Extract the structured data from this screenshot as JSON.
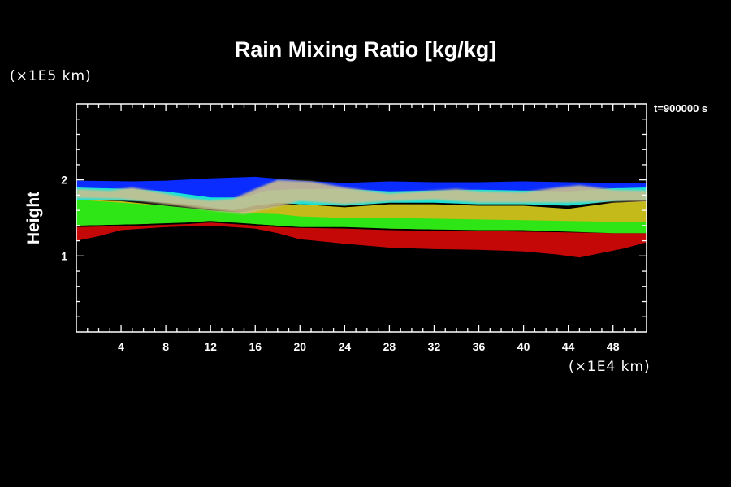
{
  "chart_data": {
    "type": "heatmap",
    "title": "Rain Mixing Ratio [kg/kg]",
    "ylabel": "Height",
    "xlabel": "",
    "x_unit": "(×1E4 km)",
    "y_unit": "(×1E5 km)",
    "time_label": "t=900000 s",
    "x_ticks": [
      4,
      8,
      12,
      16,
      20,
      24,
      28,
      32,
      36,
      40,
      44,
      48
    ],
    "y_ticks": [
      1,
      2
    ],
    "xlim": [
      0,
      51
    ],
    "ylim": [
      0,
      3
    ],
    "grid": false,
    "bands": [
      {
        "name": "blue",
        "top": [
          [
            0,
            1.99
          ],
          [
            5,
            1.98
          ],
          [
            8,
            1.99
          ],
          [
            12,
            2.02
          ],
          [
            16,
            2.04
          ],
          [
            20,
            1.99
          ],
          [
            24,
            1.96
          ],
          [
            28,
            1.98
          ],
          [
            32,
            1.97
          ],
          [
            36,
            1.97
          ],
          [
            40,
            1.98
          ],
          [
            44,
            1.97
          ],
          [
            48,
            1.96
          ],
          [
            51,
            1.96
          ]
        ],
        "bottom": [
          [
            0,
            1.89
          ],
          [
            4,
            1.87
          ],
          [
            6,
            1.87
          ],
          [
            8,
            1.84
          ],
          [
            10,
            1.78
          ],
          [
            12,
            1.72
          ],
          [
            14,
            1.73
          ],
          [
            16,
            1.78
          ],
          [
            18,
            1.84
          ],
          [
            20,
            1.85
          ],
          [
            24,
            1.86
          ],
          [
            28,
            1.84
          ],
          [
            32,
            1.86
          ],
          [
            36,
            1.86
          ],
          [
            40,
            1.86
          ],
          [
            44,
            1.85
          ],
          [
            48,
            1.88
          ],
          [
            51,
            1.89
          ]
        ]
      },
      {
        "name": "cyan",
        "top": [
          [
            0,
            1.9
          ],
          [
            5,
            1.88
          ],
          [
            8,
            1.85
          ],
          [
            12,
            1.77
          ],
          [
            15,
            1.77
          ],
          [
            17,
            1.86
          ],
          [
            20,
            1.88
          ],
          [
            24,
            1.88
          ],
          [
            28,
            1.85
          ],
          [
            32,
            1.86
          ],
          [
            36,
            1.87
          ],
          [
            40,
            1.86
          ],
          [
            44,
            1.85
          ],
          [
            48,
            1.89
          ],
          [
            51,
            1.9
          ]
        ],
        "bottom": [
          [
            0,
            1.74
          ],
          [
            6,
            1.72
          ],
          [
            10,
            1.68
          ],
          [
            12,
            1.64
          ],
          [
            14,
            1.6
          ],
          [
            16,
            1.66
          ],
          [
            18,
            1.7
          ],
          [
            20,
            1.68
          ],
          [
            24,
            1.66
          ],
          [
            28,
            1.7
          ],
          [
            32,
            1.7
          ],
          [
            36,
            1.68
          ],
          [
            40,
            1.68
          ],
          [
            44,
            1.66
          ],
          [
            48,
            1.72
          ],
          [
            51,
            1.74
          ]
        ]
      },
      {
        "name": "cloud",
        "top": [
          [
            0,
            1.88
          ],
          [
            3,
            1.86
          ],
          [
            5,
            1.9
          ],
          [
            7,
            1.85
          ],
          [
            10,
            1.76
          ],
          [
            12,
            1.73
          ],
          [
            14,
            1.75
          ],
          [
            16,
            1.88
          ],
          [
            18,
            2.0
          ],
          [
            21,
            1.98
          ],
          [
            24,
            1.9
          ],
          [
            28,
            1.82
          ],
          [
            32,
            1.86
          ],
          [
            34,
            1.88
          ],
          [
            36,
            1.85
          ],
          [
            40,
            1.84
          ],
          [
            43,
            1.9
          ],
          [
            45,
            1.93
          ],
          [
            48,
            1.87
          ],
          [
            51,
            1.86
          ]
        ],
        "bottom": [
          [
            0,
            1.76
          ],
          [
            4,
            1.75
          ],
          [
            8,
            1.68
          ],
          [
            12,
            1.6
          ],
          [
            15,
            1.55
          ],
          [
            18,
            1.65
          ],
          [
            20,
            1.72
          ],
          [
            24,
            1.68
          ],
          [
            28,
            1.72
          ],
          [
            32,
            1.74
          ],
          [
            36,
            1.7
          ],
          [
            40,
            1.7
          ],
          [
            44,
            1.7
          ],
          [
            48,
            1.72
          ],
          [
            51,
            1.72
          ]
        ]
      },
      {
        "name": "green",
        "top": [
          [
            0,
            1.74
          ],
          [
            8,
            1.66
          ],
          [
            12,
            1.6
          ],
          [
            14,
            1.58
          ],
          [
            16,
            1.56
          ],
          [
            18,
            1.55
          ],
          [
            20,
            1.52
          ],
          [
            24,
            1.5
          ],
          [
            28,
            1.5
          ],
          [
            32,
            1.49
          ],
          [
            36,
            1.48
          ],
          [
            40,
            1.47
          ],
          [
            44,
            1.46
          ],
          [
            48,
            1.45
          ],
          [
            51,
            1.45
          ]
        ],
        "bottom": [
          [
            0,
            1.4
          ],
          [
            6,
            1.42
          ],
          [
            10,
            1.44
          ],
          [
            12,
            1.46
          ],
          [
            14,
            1.44
          ],
          [
            16,
            1.42
          ],
          [
            18,
            1.4
          ],
          [
            20,
            1.38
          ],
          [
            24,
            1.38
          ],
          [
            28,
            1.36
          ],
          [
            32,
            1.35
          ],
          [
            36,
            1.34
          ],
          [
            40,
            1.34
          ],
          [
            44,
            1.32
          ],
          [
            48,
            1.3
          ],
          [
            51,
            1.3
          ]
        ]
      },
      {
        "name": "yellow",
        "top": [
          [
            0,
            1.74
          ],
          [
            4,
            1.72
          ],
          [
            8,
            1.66
          ],
          [
            11,
            1.6
          ],
          [
            13,
            1.56
          ],
          [
            15,
            1.58
          ],
          [
            18,
            1.66
          ],
          [
            20,
            1.68
          ],
          [
            24,
            1.64
          ],
          [
            28,
            1.68
          ],
          [
            32,
            1.68
          ],
          [
            36,
            1.66
          ],
          [
            40,
            1.66
          ],
          [
            44,
            1.62
          ],
          [
            48,
            1.7
          ],
          [
            51,
            1.72
          ]
        ],
        "bottom": [
          [
            0,
            1.4
          ],
          [
            6,
            1.42
          ],
          [
            10,
            1.45
          ],
          [
            12,
            1.47
          ],
          [
            14,
            1.45
          ],
          [
            16,
            1.42
          ],
          [
            18,
            1.4
          ],
          [
            20,
            1.39
          ],
          [
            24,
            1.39
          ],
          [
            28,
            1.36
          ],
          [
            32,
            1.35
          ],
          [
            36,
            1.35
          ],
          [
            40,
            1.34
          ],
          [
            44,
            1.33
          ],
          [
            48,
            1.31
          ],
          [
            51,
            1.31
          ]
        ]
      },
      {
        "name": "red",
        "top": [
          [
            0,
            1.38
          ],
          [
            6,
            1.4
          ],
          [
            10,
            1.42
          ],
          [
            12,
            1.44
          ],
          [
            14,
            1.42
          ],
          [
            16,
            1.4
          ],
          [
            18,
            1.38
          ],
          [
            20,
            1.37
          ],
          [
            24,
            1.36
          ],
          [
            28,
            1.34
          ],
          [
            32,
            1.33
          ],
          [
            36,
            1.33
          ],
          [
            40,
            1.32
          ],
          [
            44,
            1.31
          ],
          [
            48,
            1.3
          ],
          [
            51,
            1.3
          ]
        ],
        "bottom": [
          [
            0,
            1.2
          ],
          [
            2,
            1.26
          ],
          [
            4,
            1.34
          ],
          [
            8,
            1.38
          ],
          [
            12,
            1.4
          ],
          [
            16,
            1.36
          ],
          [
            18,
            1.3
          ],
          [
            20,
            1.22
          ],
          [
            24,
            1.16
          ],
          [
            28,
            1.11
          ],
          [
            32,
            1.09
          ],
          [
            36,
            1.08
          ],
          [
            40,
            1.06
          ],
          [
            43,
            1.02
          ],
          [
            45,
            0.98
          ],
          [
            47,
            1.04
          ],
          [
            49,
            1.1
          ],
          [
            51,
            1.18
          ]
        ]
      }
    ],
    "colors": {
      "blue": "#0a2cff",
      "cyan": "#15e3d8",
      "cloud": "#cbbf8e",
      "green": "#2ee515",
      "yellow": "#cfc41a",
      "red": "#c40808",
      "axis": "#ffffff",
      "background": "#000000"
    }
  }
}
